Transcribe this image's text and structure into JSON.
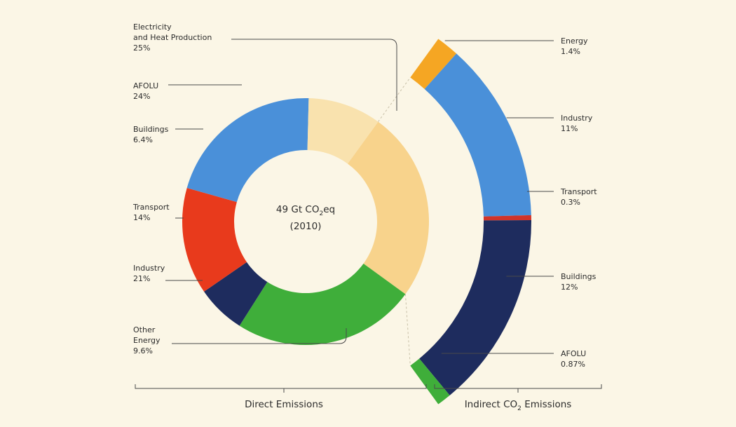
{
  "chart_data": [
    {
      "type": "pie",
      "variant": "donut",
      "title": "",
      "center_label_main": "49 Gt CO",
      "center_label_sub": "2",
      "center_label_tail": "eq",
      "center_label_year": "(2010)",
      "footer": "Direct Emissions",
      "slices": [
        {
          "name": "Electricity and Heat Production",
          "label_lines": [
            "Electricity",
            "and Heat Production"
          ],
          "value": 25,
          "value_label": "25%",
          "color": "#f8d38c"
        },
        {
          "name": "AFOLU",
          "label_lines": [
            "AFOLU"
          ],
          "value": 24,
          "value_label": "24%",
          "color": "#3fae3a"
        },
        {
          "name": "Buildings",
          "label_lines": [
            "Buildings"
          ],
          "value": 6.4,
          "value_label": "6.4%",
          "color": "#1e2c5e"
        },
        {
          "name": "Transport",
          "label_lines": [
            "Transport"
          ],
          "value": 14,
          "value_label": "14%",
          "color": "#e83a1c"
        },
        {
          "name": "Industry",
          "label_lines": [
            "Industry"
          ],
          "value": 21,
          "value_label": "21%",
          "color": "#4a90d9"
        },
        {
          "name": "Other Energy",
          "label_lines": [
            "Other",
            "Energy"
          ],
          "value": 9.6,
          "value_label": "9.6%",
          "color": "#f9e2ae"
        }
      ]
    },
    {
      "type": "pie",
      "variant": "arc-breakdown",
      "title": "",
      "footer_main": "Indirect CO",
      "footer_sub": "2",
      "footer_tail": " Emissions",
      "slices": [
        {
          "name": "Energy",
          "value": 1.4,
          "value_label": "1.4%",
          "color": "#f5a623"
        },
        {
          "name": "Industry",
          "value": 11,
          "value_label": "11%",
          "color": "#4a90d9"
        },
        {
          "name": "Transport",
          "value": 0.3,
          "value_label": "0.3%",
          "color": "#d0342a"
        },
        {
          "name": "Buildings",
          "value": 12,
          "value_label": "12%",
          "color": "#1e2c5e"
        },
        {
          "name": "AFOLU",
          "value": 0.87,
          "value_label": "0.87%",
          "color": "#3fae3a"
        }
      ]
    }
  ]
}
